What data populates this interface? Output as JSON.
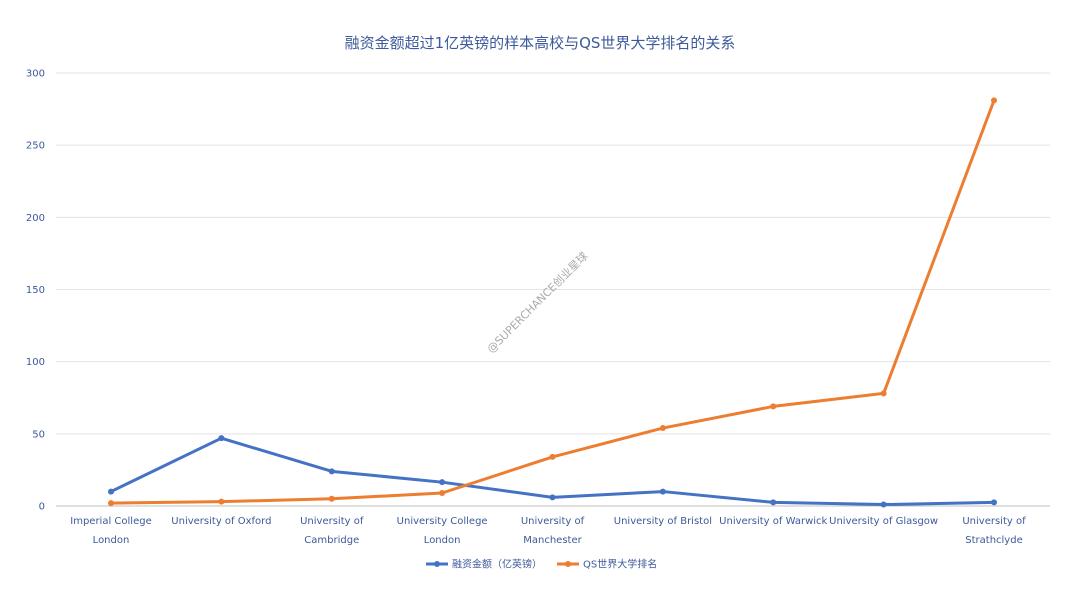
{
  "chart_data": {
    "type": "line",
    "title": "融资金额超过1亿英镑的样本高校与QS世界大学排名的关系",
    "xlabel": "",
    "ylabel": "",
    "ylim": [
      0,
      300
    ],
    "yticks": [
      0,
      50,
      100,
      150,
      200,
      250,
      300
    ],
    "grid": true,
    "legend_position": "bottom",
    "categories": [
      [
        "Imperial College",
        "London"
      ],
      [
        "University of Oxford"
      ],
      [
        "University of",
        "Cambridge"
      ],
      [
        "University College",
        "London"
      ],
      [
        "University of",
        "Manchester"
      ],
      [
        "University of Bristol"
      ],
      [
        "University of Warwick"
      ],
      [
        "University of Glasgow"
      ],
      [
        "University of",
        "Strathclyde"
      ]
    ],
    "series": [
      {
        "name": "融资金额（亿英镑）",
        "color": "#4472c4",
        "values": [
          10,
          47,
          24,
          16.5,
          6,
          10,
          2.5,
          1,
          2.5
        ]
      },
      {
        "name": "QS世界大学排名",
        "color": "#ed7d31",
        "values": [
          2,
          3,
          5,
          9,
          34,
          54,
          69,
          78,
          281
        ]
      }
    ],
    "watermark": "@SUPERCHANCE创业星球"
  }
}
